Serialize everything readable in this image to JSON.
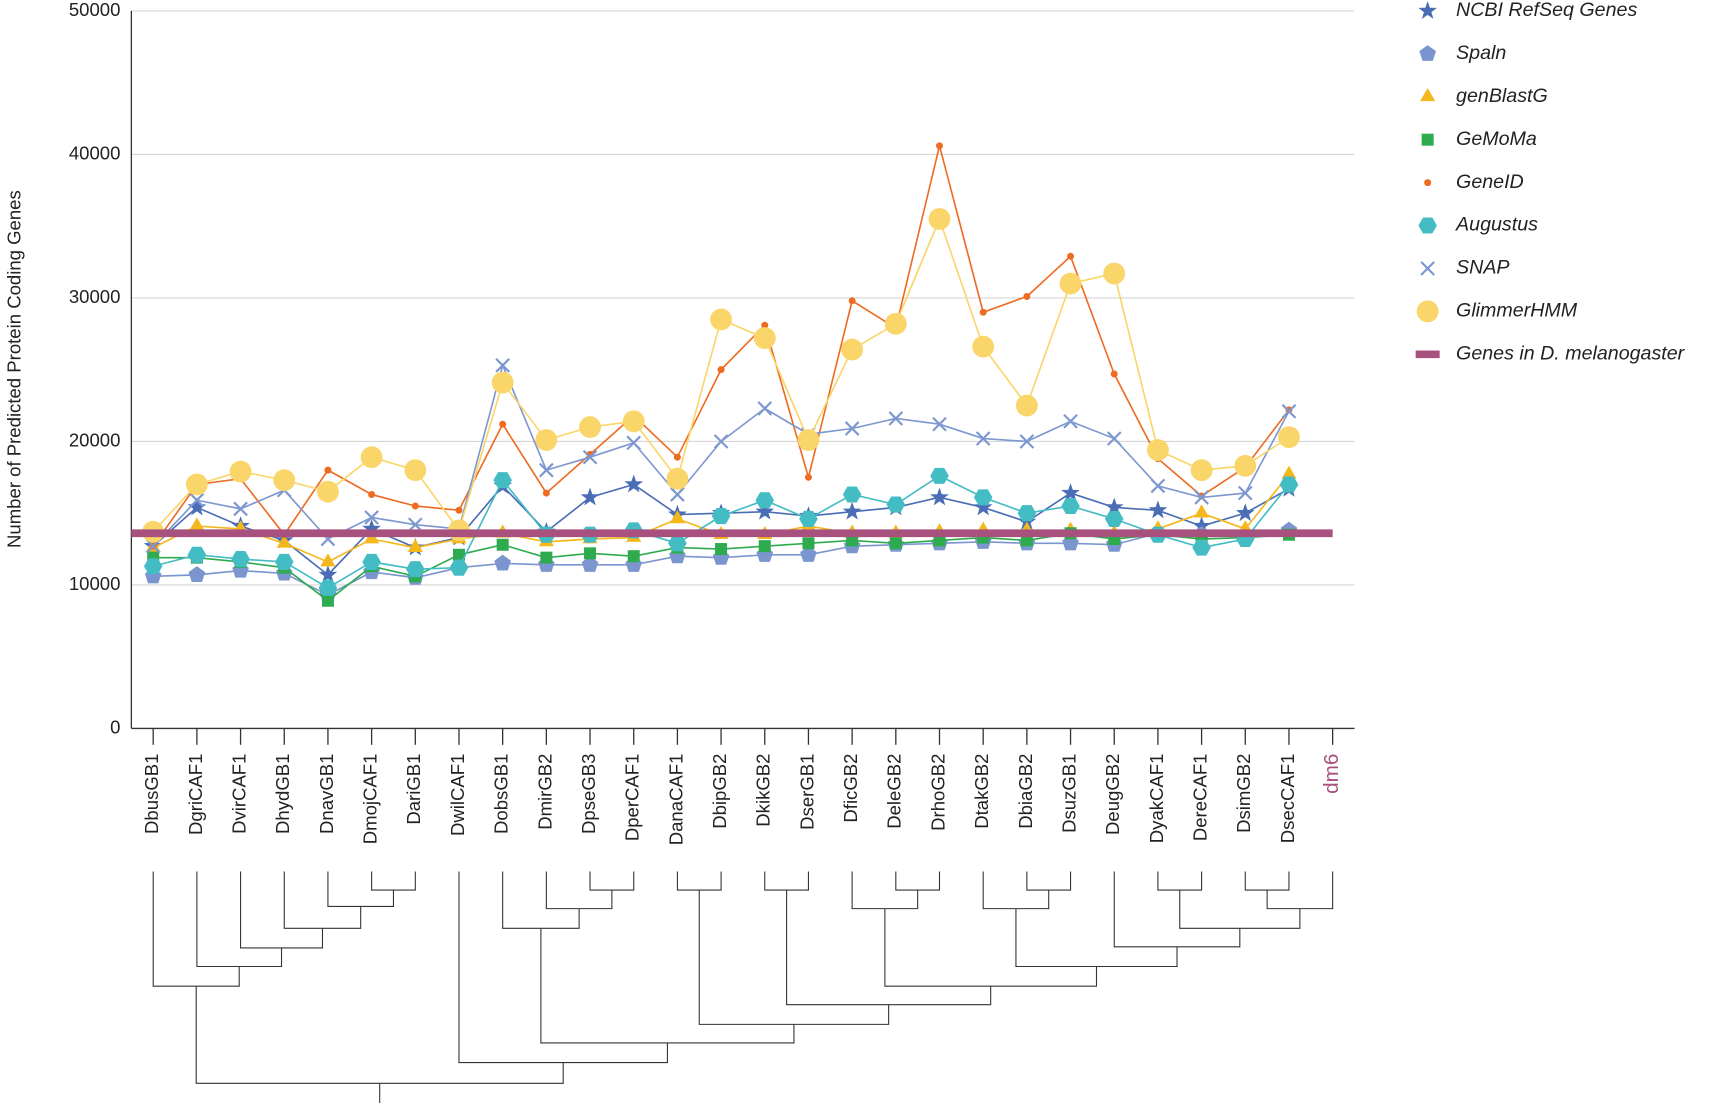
{
  "chart_data": {
    "type": "line",
    "y_label": "Number of Predicted Protein Coding Genes",
    "categories": [
      "DbusGB1",
      "DgriCAF1",
      "DvirCAF1",
      "DhydGB1",
      "DnavGB1",
      "DmojCAF1",
      "DariGB1",
      "DwilCAF1",
      "DobsGB1",
      "DmirGB2",
      "DpseGB3",
      "DperCAF1",
      "DanaCAF1",
      "DbipGB2",
      "DkikGB2",
      "DserGB1",
      "DficGB2",
      "DeleGB2",
      "DrhoGB2",
      "DtakGB2",
      "DbiaGB2",
      "DsuzGB1",
      "DeugGB2",
      "DyakCAF1",
      "DereCAF1",
      "DsimGB2",
      "DsecCAF1",
      "dm6"
    ],
    "ylim": [
      0,
      50000
    ],
    "yticks": [
      0,
      10000,
      20000,
      30000,
      40000,
      50000
    ],
    "grid": true,
    "legend": "right",
    "series": [
      {
        "name": "NCBI RefSeq Genes",
        "color": "#4a6db5",
        "marker": "star",
        "values": [
          12700,
          15400,
          14100,
          13100,
          10700,
          13900,
          12600,
          13300,
          16900,
          13700,
          16100,
          17000,
          14900,
          15000,
          15100,
          14800,
          15100,
          15400,
          16100,
          15400,
          14400,
          16400,
          15400,
          15200,
          14100,
          15000,
          16700,
          null
        ]
      },
      {
        "name": "Spaln",
        "color": "#7b96cf",
        "marker": "pentagon",
        "values": [
          10600,
          10700,
          11000,
          10800,
          9300,
          10900,
          10500,
          11200,
          11500,
          11400,
          11400,
          11400,
          12000,
          11900,
          12100,
          12100,
          12700,
          12800,
          12900,
          13000,
          12900,
          12900,
          12800,
          13600,
          13500,
          13500,
          13800,
          null
        ]
      },
      {
        "name": "genBlastG",
        "color": "#f5b81c",
        "marker": "triangle",
        "values": [
          12600,
          14100,
          13900,
          12900,
          11600,
          13200,
          12600,
          13200,
          13600,
          13000,
          13200,
          13300,
          14600,
          13500,
          13500,
          14100,
          13600,
          13600,
          13700,
          13800,
          13800,
          13800,
          13600,
          13900,
          15000,
          13900,
          17700,
          null
        ]
      },
      {
        "name": "GeMoMa",
        "color": "#2eaa4f",
        "marker": "square",
        "values": [
          11900,
          11900,
          11600,
          11200,
          8900,
          11300,
          10600,
          12100,
          12800,
          11900,
          12200,
          12000,
          12600,
          12500,
          12700,
          12900,
          13100,
          12900,
          13100,
          13300,
          13100,
          13600,
          13200,
          13500,
          13200,
          13300,
          13500,
          null
        ]
      },
      {
        "name": "GeneID",
        "color": "#ee6b22",
        "marker": "dot",
        "values": [
          12700,
          17000,
          17400,
          13500,
          18000,
          16300,
          15500,
          15200,
          21200,
          16400,
          19100,
          21800,
          18900,
          25000,
          28100,
          17500,
          29800,
          27900,
          40600,
          29000,
          30100,
          32900,
          24700,
          18800,
          16200,
          18200,
          22200,
          null
        ]
      },
      {
        "name": "Augustus",
        "color": "#44bcc4",
        "marker": "hexagon",
        "values": [
          11300,
          12100,
          11800,
          11600,
          9800,
          11600,
          11100,
          11200,
          17300,
          13500,
          13500,
          13800,
          12900,
          14800,
          15900,
          14600,
          16300,
          15600,
          17600,
          16100,
          15000,
          15500,
          14600,
          13500,
          12600,
          13200,
          17000,
          null
        ]
      },
      {
        "name": "SNAP",
        "color": "#7d98d0",
        "marker": "cross",
        "values": [
          12700,
          15900,
          15300,
          16600,
          13200,
          14700,
          14200,
          13900,
          25300,
          18000,
          18900,
          19900,
          16300,
          20000,
          22300,
          20500,
          20900,
          21600,
          21200,
          20200,
          20000,
          21400,
          20200,
          16900,
          16100,
          16400,
          22100,
          null
        ]
      },
      {
        "name": "GlimmerHMM",
        "color": "#fad56a",
        "marker": "circle",
        "values": [
          13700,
          17000,
          17900,
          17300,
          16500,
          18900,
          18000,
          13800,
          24100,
          20100,
          21000,
          21400,
          17400,
          28500,
          27200,
          20100,
          26400,
          28200,
          35500,
          26600,
          22500,
          31000,
          31700,
          19400,
          18000,
          18300,
          20300,
          null
        ]
      }
    ],
    "reference_line": {
      "name": "Genes in D. melanogaster",
      "value": 13600,
      "color": "#a8507e"
    }
  }
}
